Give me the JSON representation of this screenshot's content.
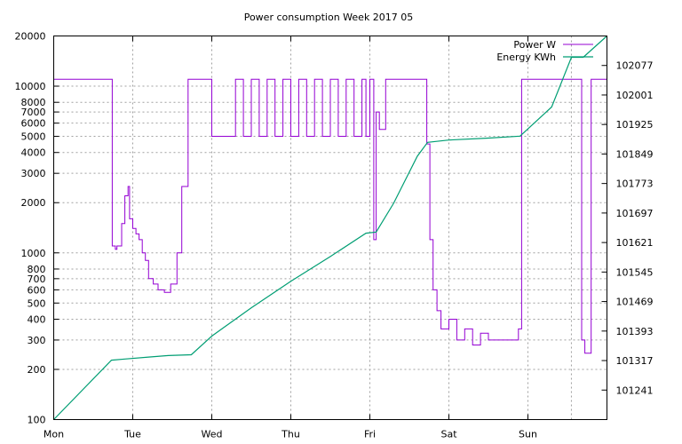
{
  "chart_data": {
    "type": "line",
    "title": "Power consumption Week 2017 05",
    "x_ticks": [
      "Mon",
      "Tue",
      "Wed",
      "Thu",
      "Fri",
      "Sat",
      "Sun"
    ],
    "x_range_days": [
      0,
      7
    ],
    "y_left": {
      "scale": "log",
      "range": [
        100,
        20000
      ],
      "ticks": [
        100,
        200,
        300,
        400,
        500,
        600,
        700,
        800,
        1000,
        2000,
        3000,
        4000,
        5000,
        6000,
        7000,
        8000,
        10000,
        20000
      ]
    },
    "y_right": {
      "range": [
        101165,
        102153
      ],
      "ticks": [
        101241,
        101317,
        101393,
        101469,
        101545,
        101621,
        101697,
        101773,
        101849,
        101925,
        102001,
        102077
      ]
    },
    "grid": true,
    "legend_position": "top-right",
    "series": [
      {
        "name": "Power W",
        "axis": "left",
        "color": "#9400d3",
        "x": [
          0,
          0.73,
          0.74,
          0.78,
          0.8,
          0.86,
          0.9,
          0.94,
          0.96,
          1.0,
          1.04,
          1.08,
          1.12,
          1.16,
          1.2,
          1.26,
          1.32,
          1.4,
          1.48,
          1.56,
          1.62,
          1.7,
          1.74,
          1.8,
          1.85,
          1.95,
          2.0,
          2.2,
          2.3,
          2.4,
          2.5,
          2.6,
          2.7,
          2.8,
          2.9,
          3.0,
          3.1,
          3.2,
          3.3,
          3.4,
          3.5,
          3.6,
          3.7,
          3.8,
          3.9,
          3.95,
          4.0,
          4.05,
          4.08,
          4.12,
          4.2,
          4.3,
          4.4,
          4.5,
          4.6,
          4.66,
          4.7,
          4.72,
          4.76,
          4.8,
          4.85,
          4.9,
          5.0,
          5.1,
          5.2,
          5.3,
          5.4,
          5.5,
          5.6,
          5.7,
          5.8,
          5.88,
          5.92,
          6.0,
          6.1,
          6.2,
          6.3,
          6.45,
          6.5,
          6.55,
          6.6,
          6.65,
          6.68,
          6.72,
          6.8,
          6.9,
          7.0
        ],
        "y": [
          11000,
          11000,
          1100,
          1050,
          1100,
          1500,
          2200,
          2500,
          1600,
          1400,
          1300,
          1200,
          1000,
          900,
          700,
          650,
          600,
          580,
          650,
          1000,
          2500,
          11000,
          11000,
          11000,
          11000,
          11000,
          5000,
          5000,
          11000,
          5000,
          11000,
          5000,
          11000,
          5000,
          11000,
          5000,
          11000,
          5000,
          11000,
          5000,
          11000,
          5000,
          11000,
          5000,
          11000,
          5000,
          11000,
          1200,
          7000,
          5500,
          11000,
          11000,
          11000,
          11000,
          11000,
          11000,
          11000,
          4500,
          1200,
          600,
          450,
          350,
          400,
          300,
          350,
          280,
          330,
          300,
          300,
          300,
          300,
          350,
          11000,
          11000,
          11000,
          11000,
          11000,
          11000,
          11000,
          11000,
          11000,
          11000,
          300,
          250,
          11000,
          11000,
          11000
        ]
      },
      {
        "name": "Energy KWh",
        "axis": "right",
        "color": "#009e73",
        "x": [
          0,
          0.73,
          0.9,
          1.2,
          1.45,
          1.74,
          2.0,
          2.5,
          3.0,
          3.5,
          3.95,
          4.08,
          4.3,
          4.6,
          4.73,
          5.0,
          5.5,
          5.9,
          6.3,
          6.55,
          6.7,
          7.0
        ],
        "y": [
          101165,
          101318,
          101321,
          101326,
          101330,
          101332,
          101380,
          101453,
          101521,
          101585,
          101645,
          101648,
          101722,
          101843,
          101879,
          101885,
          101890,
          101895,
          101970,
          102098,
          102098,
          102153
        ]
      }
    ]
  }
}
